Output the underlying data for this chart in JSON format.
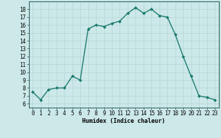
{
  "x": [
    0,
    1,
    2,
    3,
    4,
    5,
    6,
    7,
    8,
    9,
    10,
    11,
    12,
    13,
    14,
    15,
    16,
    17,
    18,
    19,
    20,
    21,
    22,
    23
  ],
  "y": [
    7.5,
    6.5,
    7.8,
    8.0,
    8.0,
    9.5,
    9.0,
    15.5,
    16.0,
    15.8,
    16.2,
    16.5,
    17.5,
    18.2,
    17.5,
    18.0,
    17.2,
    17.0,
    14.8,
    12.0,
    9.5,
    7.0,
    6.8,
    6.5
  ],
  "xlabel": "Humidex (Indice chaleur)",
  "ylabel_ticks": [
    6,
    7,
    8,
    9,
    10,
    11,
    12,
    13,
    14,
    15,
    16,
    17,
    18
  ],
  "xlim": [
    -0.5,
    23.5
  ],
  "ylim": [
    5.5,
    19.0
  ],
  "line_color": "#1a7a6e",
  "bg_color": "#cce8e8",
  "grid_color": "#b8d8d8",
  "tick_labels_x": [
    "0",
    "1",
    "2",
    "3",
    "4",
    "5",
    "6",
    "7",
    "8",
    "9",
    "10",
    "11",
    "12",
    "13",
    "14",
    "15",
    "16",
    "17",
    "18",
    "19",
    "20",
    "21",
    "22",
    "23"
  ],
  "xlabel_fontsize": 6.0,
  "tick_fontsize": 5.5
}
